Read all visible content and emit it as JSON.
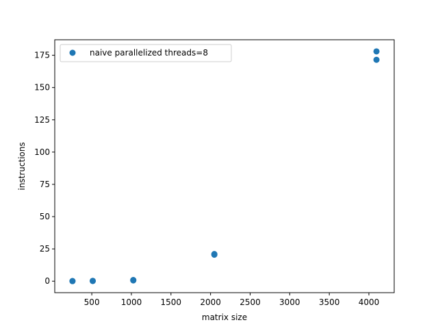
{
  "chart_data": {
    "type": "scatter",
    "title": "",
    "xlabel": "matrix size",
    "ylabel": "instructions",
    "xlim": [
      32,
      4320
    ],
    "ylim": [
      -8.9,
      187.0
    ],
    "xticks": [
      500,
      1000,
      1500,
      2000,
      2500,
      3000,
      3500,
      4000
    ],
    "yticks": [
      0,
      25,
      50,
      75,
      100,
      125,
      150,
      175
    ],
    "grid": false,
    "legend_position": "top-left",
    "series": [
      {
        "name": "naive parallelized threads=8",
        "color": "#1f77b4",
        "points": [
          {
            "x": 256,
            "y": 0.05
          },
          {
            "x": 256,
            "y": 0.1
          },
          {
            "x": 512,
            "y": 0.15
          },
          {
            "x": 512,
            "y": 0.25
          },
          {
            "x": 1024,
            "y": 0.6
          },
          {
            "x": 1024,
            "y": 0.9
          },
          {
            "x": 2048,
            "y": 20.5
          },
          {
            "x": 2048,
            "y": 21.0
          },
          {
            "x": 4096,
            "y": 171.5
          },
          {
            "x": 4096,
            "y": 178.0
          }
        ]
      }
    ]
  }
}
